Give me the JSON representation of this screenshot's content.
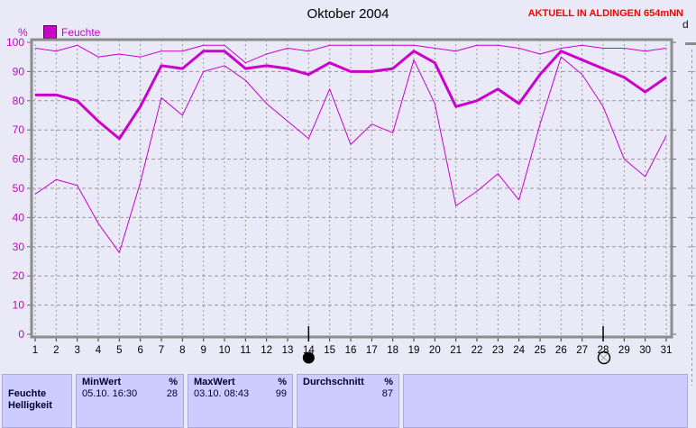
{
  "header": {
    "title": "Oktober 2004",
    "station_label": "AKTUELL IN ALDINGEN 654mNN"
  },
  "right_panel": {
    "clipped_axis_label": "d"
  },
  "chart_data": {
    "type": "line",
    "title": "Oktober 2004",
    "y_unit": "%",
    "legend_label": "Feuchte",
    "legend_position": "top-left",
    "grid": true,
    "ylim": [
      0,
      100
    ],
    "y_ticks": [
      0,
      10,
      20,
      30,
      40,
      50,
      60,
      70,
      80,
      90,
      100
    ],
    "x": [
      1,
      2,
      3,
      4,
      5,
      6,
      7,
      8,
      9,
      10,
      11,
      12,
      13,
      14,
      15,
      16,
      17,
      18,
      19,
      20,
      21,
      22,
      23,
      24,
      25,
      26,
      27,
      28,
      29,
      30,
      31
    ],
    "series": [
      {
        "name": "max",
        "thick": false,
        "values": [
          98,
          97,
          99,
          95,
          96,
          95,
          97,
          97,
          99,
          99,
          93,
          96,
          98,
          97,
          99,
          99,
          99,
          99,
          99,
          98,
          97,
          99,
          99,
          98,
          96,
          98,
          99,
          98,
          98,
          97,
          98
        ]
      },
      {
        "name": "mean",
        "thick": true,
        "values": [
          82,
          82,
          80,
          73,
          67,
          78,
          92,
          91,
          97,
          97,
          91,
          92,
          91,
          89,
          93,
          90,
          90,
          91,
          97,
          93,
          78,
          80,
          84,
          79,
          89,
          97,
          94,
          91,
          88,
          83,
          88
        ]
      },
      {
        "name": "min",
        "thick": false,
        "values": [
          48,
          53,
          51,
          38,
          28,
          52,
          81,
          75,
          90,
          92,
          87,
          79,
          73,
          67,
          84,
          65,
          72,
          69,
          94,
          79,
          44,
          49,
          55,
          46,
          72,
          95,
          89,
          78,
          60,
          54,
          68
        ]
      }
    ],
    "moon_markers": [
      {
        "day": 14,
        "symbol": "filled-circle"
      },
      {
        "day": 28,
        "symbol": "hatched-circle"
      }
    ]
  },
  "summary_table": {
    "sensor_label": "Feuchte",
    "clipped_next_row_label": "Helligkeit",
    "min": {
      "header": "MinWert",
      "unit": "%",
      "datetime": "05.10. 16:30",
      "value": "28"
    },
    "max": {
      "header": "MaxWert",
      "unit": "%",
      "datetime": "03.10. 08:43",
      "value": "99"
    },
    "avg": {
      "header": "Durchschnitt",
      "unit": "%",
      "value": "87"
    }
  },
  "colors": {
    "line": "#cc00cc",
    "axis_label": "#cc00cc",
    "station_text": "#ff0000",
    "grid": "#999999",
    "border": "#8c8c8c",
    "table_bg": "#ccccff",
    "page_bg": "#e9e9f8"
  }
}
